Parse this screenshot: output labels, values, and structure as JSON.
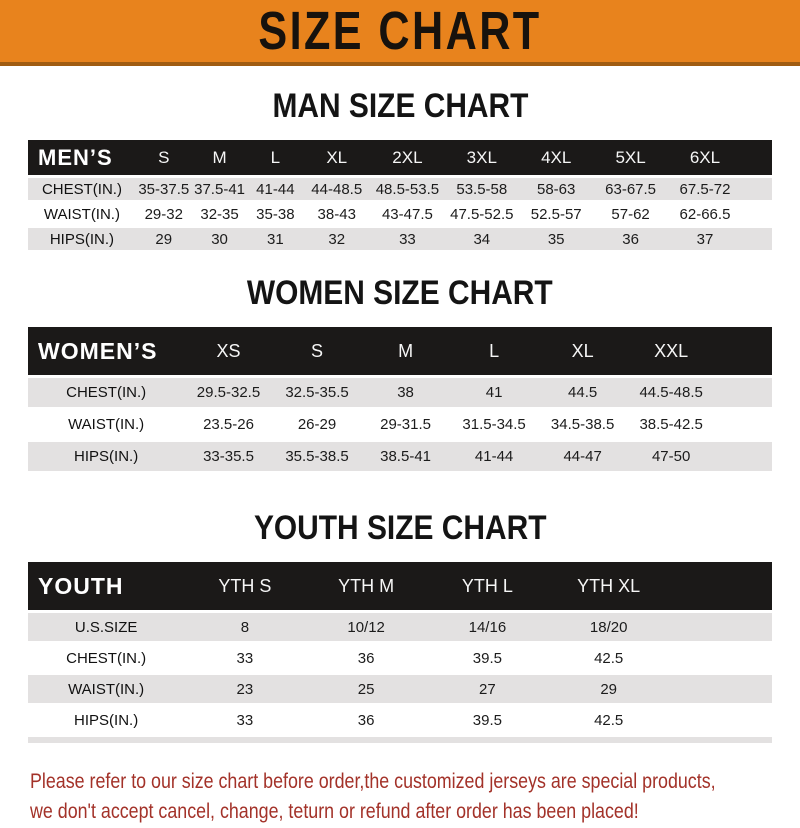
{
  "banner": {
    "title": "SIZE CHART"
  },
  "sections": [
    {
      "heading": "MAN SIZE CHART",
      "header_label": "MEN’S",
      "columns": [
        "S",
        "M",
        "L",
        "XL",
        "2XL",
        "3XL",
        "4XL",
        "5XL",
        "6XL"
      ],
      "rows": [
        {
          "label": "CHEST(IN.)",
          "values": [
            "35-37.5",
            "37.5-41",
            "41-44",
            "44-48.5",
            "48.5-53.5",
            "53.5-58",
            "58-63",
            "63-67.5",
            "67.5-72"
          ]
        },
        {
          "label": "WAIST(IN.)",
          "values": [
            "29-32",
            "32-35",
            "35-38",
            "38-43",
            "43-47.5",
            "47.5-52.5",
            "52.5-57",
            "57-62",
            "62-66.5"
          ]
        },
        {
          "label": "HIPS(IN.)",
          "values": [
            "29",
            "30",
            "31",
            "32",
            "33",
            "34",
            "35",
            "36",
            "37"
          ]
        }
      ]
    },
    {
      "heading": "WOMEN SIZE CHART",
      "header_label": "WOMEN’S",
      "columns": [
        "XS",
        "S",
        "M",
        "L",
        "XL",
        "XXL"
      ],
      "rows": [
        {
          "label": "CHEST(IN.)",
          "values": [
            "29.5-32.5",
            "32.5-35.5",
            "38",
            "41",
            "44.5",
            "44.5-48.5"
          ]
        },
        {
          "label": "WAIST(IN.)",
          "values": [
            "23.5-26",
            "26-29",
            "29-31.5",
            "31.5-34.5",
            "34.5-38.5",
            "38.5-42.5"
          ]
        },
        {
          "label": "HIPS(IN.)",
          "values": [
            "33-35.5",
            "35.5-38.5",
            "38.5-41",
            "41-44",
            "44-47",
            "47-50"
          ]
        }
      ]
    },
    {
      "heading": "YOUTH SIZE CHART",
      "header_label": "YOUTH",
      "columns": [
        "YTH S",
        "YTH M",
        "YTH L",
        "YTH XL"
      ],
      "rows": [
        {
          "label": "U.S.SIZE",
          "values": [
            "8",
            "10/12",
            "14/16",
            "18/20"
          ]
        },
        {
          "label": "CHEST(IN.)",
          "values": [
            "33",
            "36",
            "39.5",
            "42.5"
          ]
        },
        {
          "label": "WAIST(IN.)",
          "values": [
            "23",
            "25",
            "27",
            "29"
          ]
        },
        {
          "label": "HIPS(IN.)",
          "values": [
            "33",
            "36",
            "39.5",
            "42.5"
          ]
        }
      ]
    }
  ],
  "footer": {
    "line1": "Please refer to our size chart before order,the customized jerseys are special products,",
    "line2": "we don't accept cancel, change, teturn or refund after order has been placed!"
  },
  "colors": {
    "banner_bg": "#E8831D",
    "banner_border": "#A05C12",
    "table_header_bg": "#1B1918",
    "row_stripe_gray": "#E3E1E1",
    "footer_text": "#A33229"
  }
}
